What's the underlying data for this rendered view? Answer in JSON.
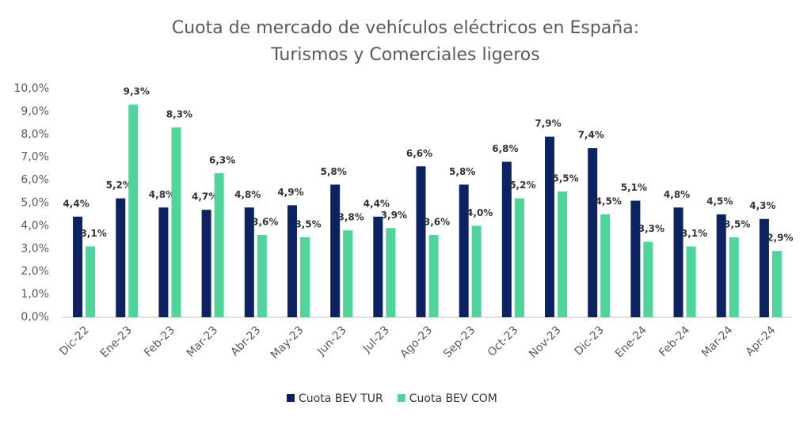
{
  "chart_data": {
    "type": "bar",
    "title": [
      "Cuota de mercado de vehículos eléctricos en España:",
      "Turismos y Comerciales ligeros"
    ],
    "categories": [
      "Dic-22",
      "Ene-23",
      "Feb-23",
      "Mar-23",
      "Abr-23",
      "May-23",
      "Jun-23",
      "Jul-23",
      "Ago-23",
      "Sep-23",
      "Oct-23",
      "Nov-23",
      "Dic-23",
      "Ene-24",
      "Feb-24",
      "Mar-24",
      "Apr-24"
    ],
    "series": [
      {
        "name": "Cuota BEV TUR",
        "color": "#0d2260",
        "values": [
          4.4,
          5.2,
          4.8,
          4.7,
          4.8,
          4.9,
          5.8,
          4.4,
          6.6,
          5.8,
          6.8,
          7.9,
          7.4,
          5.1,
          4.8,
          4.5,
          4.3
        ],
        "value_labels": [
          "4,4%",
          "5,2%",
          "4,8%",
          "4,7%",
          "4,8%",
          "4,9%",
          "5,8%",
          "4,4%",
          "6,6%",
          "5,8%",
          "6,8%",
          "7,9%",
          "7,4%",
          "5,1%",
          "4,8%",
          "4,5%",
          "4,3%"
        ]
      },
      {
        "name": "Cuota BEV COM",
        "color": "#4fd49b",
        "values": [
          3.1,
          9.3,
          8.3,
          6.3,
          3.6,
          3.5,
          3.8,
          3.9,
          3.6,
          4.0,
          5.2,
          5.5,
          4.5,
          3.3,
          3.1,
          3.5,
          2.9
        ],
        "value_labels": [
          "3,1%",
          "9,3%",
          "8,3%",
          "6,3%",
          "3,6%",
          "3,5%",
          "3,8%",
          "3,9%",
          "3,6%",
          "4,0%",
          "5,2%",
          "5,5%",
          "4,5%",
          "3,3%",
          "3,1%",
          "3,5%",
          "2,9%"
        ]
      }
    ],
    "ylim": [
      0,
      10
    ],
    "yticks": [
      {
        "value": 0,
        "label": "0,0%"
      },
      {
        "value": 1,
        "label": "1,0%"
      },
      {
        "value": 2,
        "label": "2,0%"
      },
      {
        "value": 3,
        "label": "3,0%"
      },
      {
        "value": 4,
        "label": "4,0%"
      },
      {
        "value": 5,
        "label": "5,0%"
      },
      {
        "value": 6,
        "label": "6,0%"
      },
      {
        "value": 7,
        "label": "7,0%"
      },
      {
        "value": 8,
        "label": "8,0%"
      },
      {
        "value": 9,
        "label": "9,0%"
      },
      {
        "value": 10,
        "label": "10,0%"
      }
    ],
    "grid": false,
    "legend": "bottom"
  }
}
